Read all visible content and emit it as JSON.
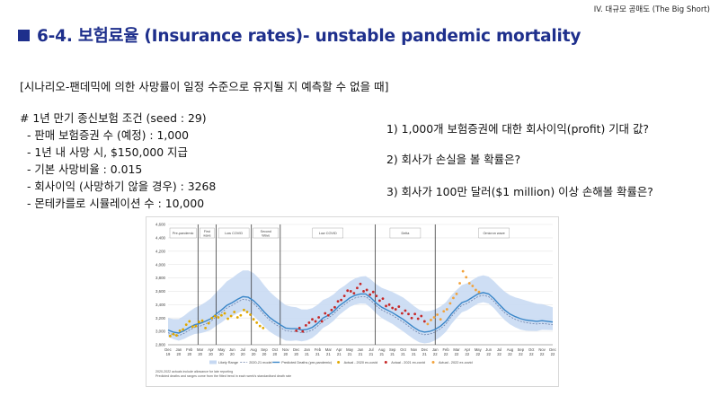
{
  "header": {
    "tag": "IV. 대규모 공매도 (The Big Short)",
    "title": "6-4. 보험료율 (Insurance rates)- unstable pandemic mortality"
  },
  "scenario": "[시나리오-팬데믹에 의한 사망률이 일정 수준으로 유지될 지 예측할 수 없을 때]",
  "conditions": {
    "heading": "# 1년 만기 종신보험 조건 (seed : 29)",
    "items": [
      "- 판매 보험증권 수 (예정) : 1,000",
      "- 1년 내 사망 시, $150,000 지급",
      "- 기본 사망비율 : 0.015",
      "- 회사이익 (사망하기 않을 경우) : 3268",
      "- 몬테카를로 시뮬레이션  수 : 10,000"
    ]
  },
  "questions": [
    "1) 1,000개 보험증권에 대한 회사이익(profit) 기대 값?",
    "2) 회사가 손실을 볼 확률은?",
    "3) 회사가 100만 달러($1 million) 이상 손해볼 확률은?"
  ],
  "colors": {
    "title": "#1e2f8c",
    "band": "#c6d8f2",
    "predicted": "#3a86c8",
    "model2020": "#6b7fa8",
    "actual2020": "#e0a800",
    "actual2021": "#c62828",
    "actual2022": "#f2a23a"
  },
  "chart_data": {
    "type": "line",
    "ylim": [
      2800,
      4600
    ],
    "yticks": [
      "4,600",
      "4,400",
      "4,200",
      "4,000",
      "3,800",
      "3,600",
      "3,400",
      "3,200",
      "3,000",
      "2,800"
    ],
    "ytick_values": [
      4600,
      4400,
      4200,
      4000,
      3800,
      3600,
      3400,
      3200,
      3000,
      2800
    ],
    "months": [
      "Dec",
      "Jan",
      "Feb",
      "Mar",
      "Apr",
      "May",
      "Jun",
      "Jul",
      "Aug",
      "Sep",
      "Oct",
      "Nov",
      "Dec",
      "Jan",
      "Feb",
      "Mar",
      "Apr",
      "May",
      "Jun",
      "Jul",
      "Aug",
      "Sep",
      "Oct",
      "Nov",
      "Dec",
      "Jan",
      "Feb",
      "Mar",
      "Apr",
      "May",
      "Jun",
      "Jul",
      "Aug",
      "Sep",
      "Oct",
      "Nov",
      "Dec"
    ],
    "years": [
      "19",
      "20",
      "20",
      "20",
      "20",
      "20",
      "20",
      "20",
      "20",
      "20",
      "20",
      "20",
      "20",
      "21",
      "21",
      "21",
      "21",
      "21",
      "21",
      "21",
      "21",
      "21",
      "21",
      "21",
      "21",
      "22",
      "22",
      "22",
      "22",
      "22",
      "22",
      "22",
      "22",
      "22",
      "22",
      "22",
      "22"
    ],
    "phases": [
      {
        "label": "Pre-pandemic",
        "start": 0,
        "end": 2.8
      },
      {
        "label": "First wave",
        "start": 2.8,
        "end": 4.5
      },
      {
        "label": "Low COVID",
        "start": 4.5,
        "end": 7.8
      },
      {
        "label": "Second Wave",
        "start": 7.8,
        "end": 10.5
      },
      {
        "label": "Low COVID",
        "start": 10.5,
        "end": 19.4
      },
      {
        "label": "Delta",
        "start": 19.4,
        "end": 25.0
      },
      {
        "label": "Omicron wave",
        "start": 25.0,
        "end": 36
      }
    ],
    "predicted": [
      [
        0,
        3020
      ],
      [
        0.5,
        2990
      ],
      [
        1,
        2975
      ],
      [
        1.5,
        3010
      ],
      [
        2,
        3060
      ],
      [
        2.5,
        3100
      ],
      [
        3,
        3120
      ],
      [
        3.5,
        3150
      ],
      [
        4,
        3190
      ],
      [
        4.5,
        3260
      ],
      [
        5,
        3320
      ],
      [
        5.5,
        3390
      ],
      [
        6,
        3430
      ],
      [
        6.5,
        3480
      ],
      [
        7,
        3520
      ],
      [
        7.5,
        3510
      ],
      [
        8,
        3460
      ],
      [
        8.5,
        3380
      ],
      [
        9,
        3290
      ],
      [
        9.5,
        3210
      ],
      [
        10,
        3150
      ],
      [
        10.5,
        3100
      ],
      [
        11,
        3050
      ],
      [
        11.5,
        3040
      ],
      [
        12,
        3040
      ],
      [
        12.5,
        3020
      ],
      [
        13,
        3030
      ],
      [
        13.5,
        3060
      ],
      [
        14,
        3120
      ],
      [
        14.5,
        3200
      ],
      [
        15,
        3240
      ],
      [
        15.5,
        3300
      ],
      [
        16,
        3380
      ],
      [
        16.5,
        3440
      ],
      [
        17,
        3500
      ],
      [
        17.5,
        3540
      ],
      [
        18,
        3560
      ],
      [
        18.5,
        3560
      ],
      [
        19,
        3500
      ],
      [
        19.5,
        3420
      ],
      [
        20,
        3360
      ],
      [
        20.5,
        3320
      ],
      [
        21,
        3280
      ],
      [
        21.5,
        3230
      ],
      [
        22,
        3180
      ],
      [
        22.5,
        3120
      ],
      [
        23,
        3060
      ],
      [
        23.5,
        3010
      ],
      [
        24,
        2990
      ],
      [
        24.5,
        3000
      ],
      [
        25,
        3030
      ],
      [
        25.5,
        3080
      ],
      [
        26,
        3150
      ],
      [
        26.5,
        3260
      ],
      [
        27,
        3350
      ],
      [
        27.5,
        3430
      ],
      [
        28,
        3460
      ],
      [
        28.5,
        3510
      ],
      [
        29,
        3560
      ],
      [
        29.5,
        3580
      ],
      [
        30,
        3560
      ],
      [
        30.5,
        3490
      ],
      [
        31,
        3400
      ],
      [
        31.5,
        3320
      ],
      [
        32,
        3260
      ],
      [
        32.5,
        3220
      ],
      [
        33,
        3190
      ],
      [
        33.5,
        3170
      ],
      [
        34,
        3160
      ],
      [
        34.5,
        3150
      ],
      [
        35,
        3160
      ],
      [
        35.5,
        3150
      ],
      [
        36,
        3140
      ]
    ],
    "band_upper_offset": [
      180,
      260,
      360,
      420,
      340,
      280,
      240,
      280,
      330,
      300,
      260,
      260,
      300,
      220
    ],
    "actual_2020": [
      [
        0.2,
        2930
      ],
      [
        0.5,
        2960
      ],
      [
        0.8,
        2940
      ],
      [
        1.1,
        3010
      ],
      [
        1.4,
        3030
      ],
      [
        1.7,
        3100
      ],
      [
        2.0,
        3150
      ],
      [
        2.3,
        3070
      ],
      [
        2.6,
        3080
      ],
      [
        2.9,
        3140
      ],
      [
        3.2,
        3160
      ],
      [
        3.5,
        3050
      ],
      [
        3.8,
        3120
      ],
      [
        4.1,
        3200
      ],
      [
        4.4,
        3230
      ],
      [
        4.7,
        3210
      ],
      [
        5.0,
        3240
      ],
      [
        5.3,
        3270
      ],
      [
        5.6,
        3190
      ],
      [
        5.9,
        3230
      ],
      [
        6.2,
        3290
      ],
      [
        6.5,
        3210
      ],
      [
        6.8,
        3240
      ],
      [
        7.1,
        3320
      ],
      [
        7.4,
        3290
      ],
      [
        7.7,
        3250
      ],
      [
        8.0,
        3180
      ],
      [
        8.3,
        3130
      ],
      [
        8.6,
        3080
      ],
      [
        8.9,
        3050
      ]
    ],
    "actual_2021": [
      [
        12.0,
        3010
      ],
      [
        12.3,
        3050
      ],
      [
        12.6,
        3000
      ],
      [
        12.9,
        3090
      ],
      [
        13.2,
        3130
      ],
      [
        13.5,
        3180
      ],
      [
        13.8,
        3150
      ],
      [
        14.1,
        3210
      ],
      [
        14.4,
        3150
      ],
      [
        14.7,
        3270
      ],
      [
        15.0,
        3240
      ],
      [
        15.3,
        3320
      ],
      [
        15.6,
        3360
      ],
      [
        15.9,
        3450
      ],
      [
        16.2,
        3470
      ],
      [
        16.5,
        3530
      ],
      [
        16.8,
        3610
      ],
      [
        17.1,
        3600
      ],
      [
        17.4,
        3570
      ],
      [
        17.7,
        3650
      ],
      [
        18.0,
        3710
      ],
      [
        18.3,
        3600
      ],
      [
        18.6,
        3620
      ],
      [
        18.9,
        3550
      ],
      [
        19.2,
        3590
      ],
      [
        19.5,
        3530
      ],
      [
        19.8,
        3460
      ],
      [
        20.1,
        3490
      ],
      [
        20.4,
        3380
      ],
      [
        20.7,
        3400
      ],
      [
        21.0,
        3350
      ],
      [
        21.3,
        3330
      ],
      [
        21.6,
        3370
      ],
      [
        21.9,
        3270
      ],
      [
        22.2,
        3310
      ],
      [
        22.5,
        3260
      ],
      [
        22.8,
        3200
      ],
      [
        23.1,
        3260
      ],
      [
        23.4,
        3190
      ],
      [
        23.7,
        3230
      ],
      [
        24.0,
        3150
      ]
    ],
    "actual_2022": [
      [
        24.3,
        3110
      ],
      [
        24.6,
        3170
      ],
      [
        24.9,
        3210
      ],
      [
        25.2,
        3250
      ],
      [
        25.5,
        3180
      ],
      [
        25.8,
        3300
      ],
      [
        26.1,
        3330
      ],
      [
        26.4,
        3420
      ],
      [
        26.7,
        3500
      ],
      [
        27.0,
        3560
      ],
      [
        27.3,
        3720
      ],
      [
        27.6,
        3900
      ],
      [
        27.9,
        3810
      ],
      [
        28.2,
        3720
      ],
      [
        28.5,
        3680
      ],
      [
        28.8,
        3620
      ],
      [
        29.1,
        3590
      ]
    ],
    "legend": [
      {
        "label": "Likely Range",
        "kind": "band"
      },
      {
        "label": "2020-21 model",
        "kind": "dash"
      },
      {
        "label": "Predicted Deaths (pre-pandemic)",
        "kind": "line"
      },
      {
        "label": "Actual - 2020 ex-covid",
        "kind": "dot2020"
      },
      {
        "label": "Actual - 2021 ex-covid",
        "kind": "dot2021"
      },
      {
        "label": "Actual - 2022 ex-covid",
        "kind": "dot2022"
      }
    ],
    "notes": [
      "2020-2022 actuals include allowance for late reporting",
      "Predicted deaths and ranges come from the fitted trend in each week's standardised death rate"
    ]
  }
}
